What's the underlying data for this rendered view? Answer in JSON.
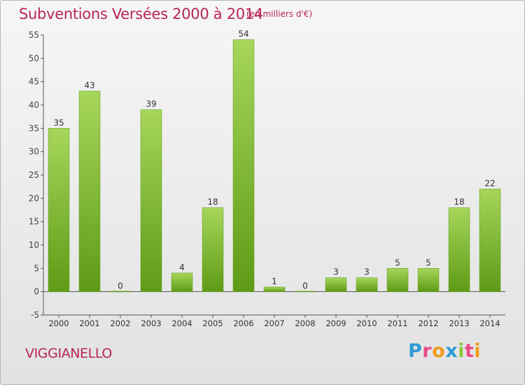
{
  "title": "Subventions Versées 2000 à 2014",
  "unit_note": "(en milliers d'€)",
  "commune": "VIGGIANELLO",
  "logo": {
    "text": "Proxiti",
    "letters": [
      {
        "ch": "P",
        "color": "#2f9ad6"
      },
      {
        "ch": "r",
        "color": "#e94a8a"
      },
      {
        "ch": "o",
        "color": "#f29b1f"
      },
      {
        "ch": "x",
        "color": "#2f9ad6"
      },
      {
        "ch": "i",
        "color": "#8cc63f"
      },
      {
        "ch": "t",
        "color": "#e94a8a"
      },
      {
        "ch": "i",
        "color": "#f29b1f"
      }
    ]
  },
  "colors": {
    "title": "#b8245b",
    "bar_top": "#a6d65a",
    "bar_bottom": "#5e9b16",
    "axis": "#555555",
    "grid": "#d0d0d0"
  },
  "chart_data": {
    "type": "bar",
    "categories": [
      "2000",
      "2001",
      "2002",
      "2003",
      "2004",
      "2005",
      "2006",
      "2007",
      "2008",
      "2009",
      "2010",
      "2011",
      "2012",
      "2013",
      "2014"
    ],
    "values": [
      35,
      43,
      0,
      39,
      4,
      18,
      54,
      1,
      0,
      3,
      3,
      5,
      5,
      18,
      22
    ],
    "ylim": [
      -5,
      55
    ],
    "yticks": [
      -5,
      0,
      5,
      10,
      15,
      20,
      25,
      30,
      35,
      40,
      45,
      50,
      55
    ],
    "grid": false,
    "legend": "none"
  }
}
